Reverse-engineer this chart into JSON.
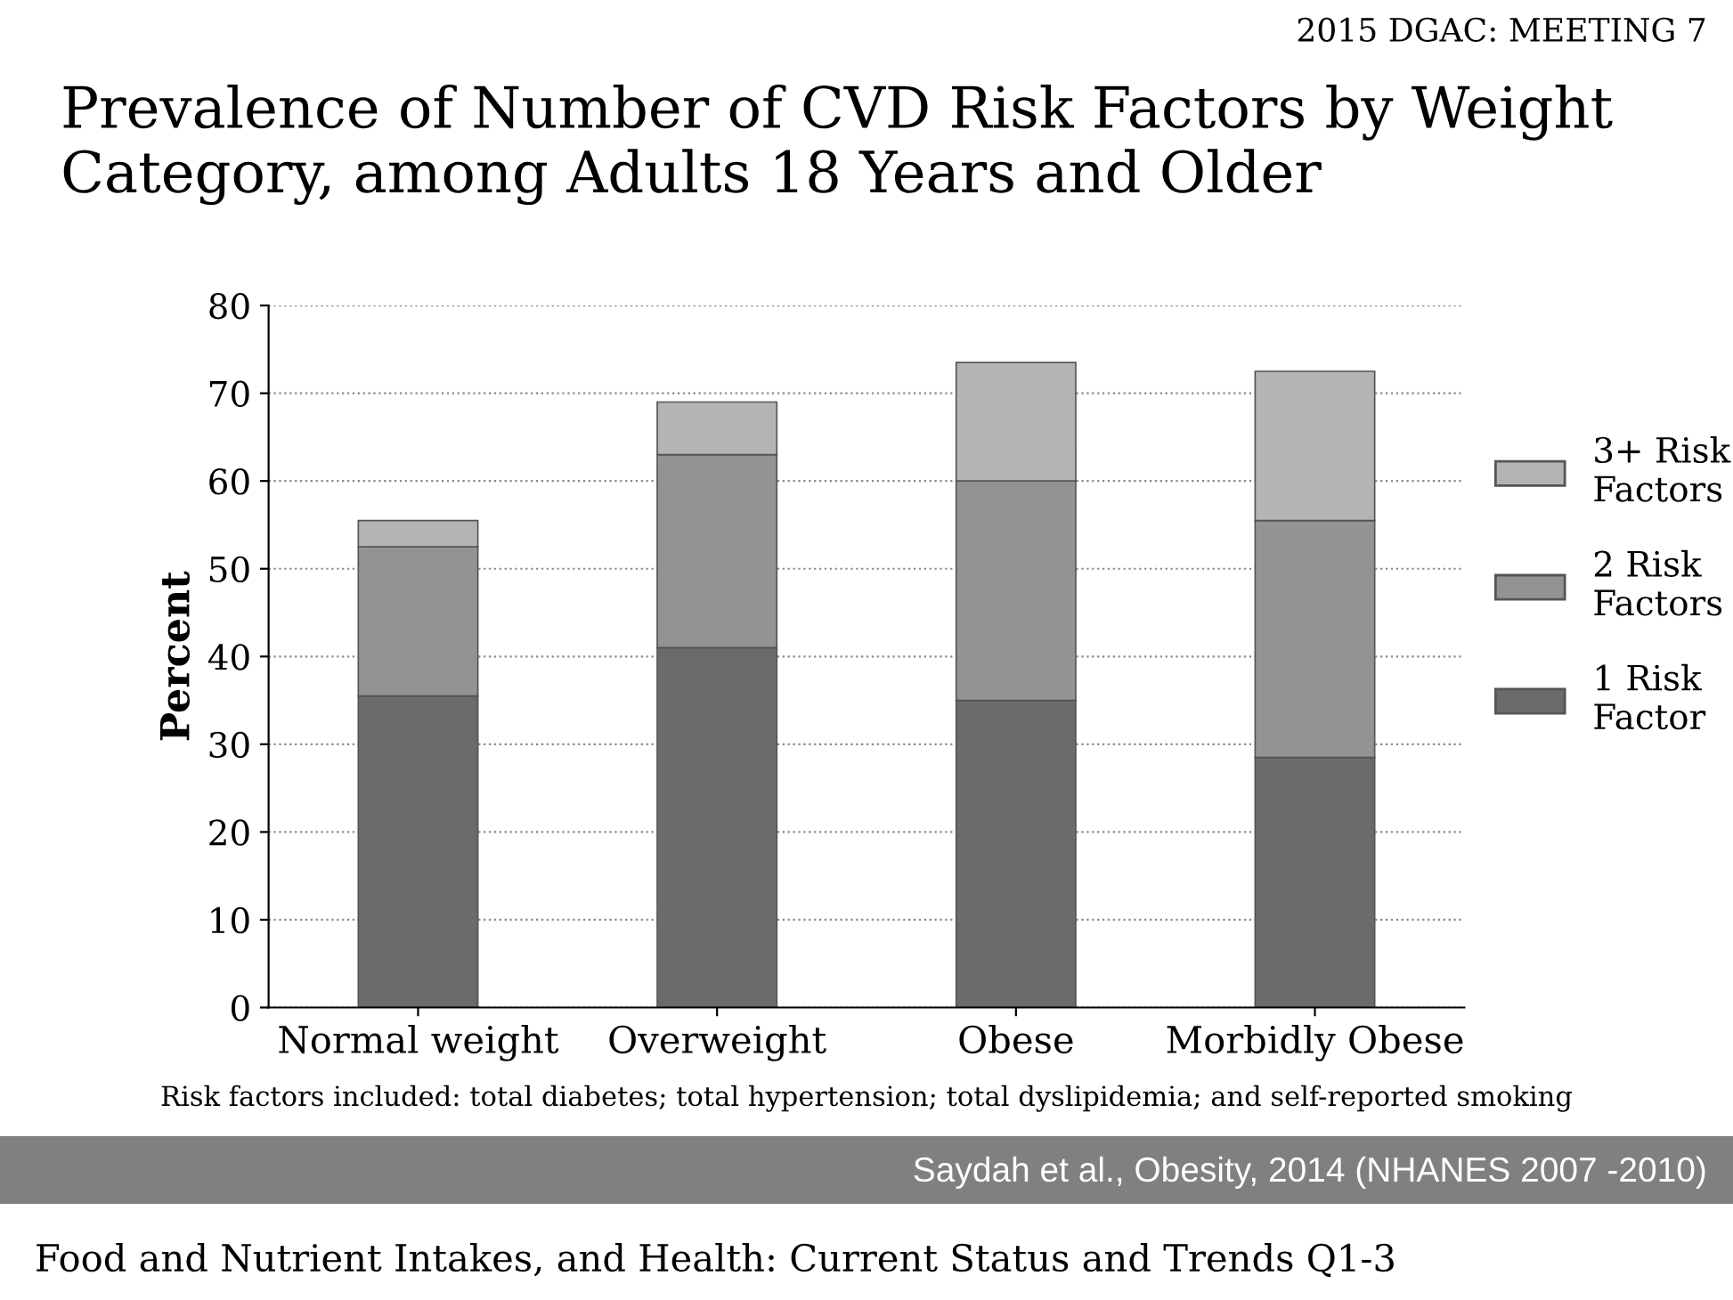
{
  "chart_data": {
    "type": "bar",
    "title": "Prevalence of Number of CVD Risk Factors by Weight Category, among Adults 18 Years and Older",
    "ylabel": "Percent",
    "categories": [
      "Normal weight",
      "Overweight",
      "Obese",
      "Morbidly Obese"
    ],
    "stacked": true,
    "series": [
      {
        "name": "1 Risk Factor",
        "color": "#6b6b6b",
        "values": [
          35.5,
          41,
          35,
          28.5
        ]
      },
      {
        "name": "2 Risk Factors",
        "color": "#939393",
        "values": [
          17,
          22,
          25,
          27
        ]
      },
      {
        "name": "3+ Risk Factors",
        "color": "#b4b4b4",
        "values": [
          3,
          6,
          13.5,
          17
        ]
      }
    ],
    "ylim": [
      0,
      80
    ],
    "yticks": [
      0,
      10,
      20,
      30,
      40,
      50,
      60,
      70,
      80
    ],
    "grid": "y",
    "legend": "right",
    "annotations": [
      "2015 DGAC: MEETING 7",
      "Risk factors included: total diabetes; total hypertension; total dyslipidemia; and self-reported smoking",
      "Saydah et al., Obesity, 2014 (NHANES 2007 -2010)",
      "Food and Nutrient Intakes, and Health: Current Status and Trends Q1-3"
    ]
  }
}
